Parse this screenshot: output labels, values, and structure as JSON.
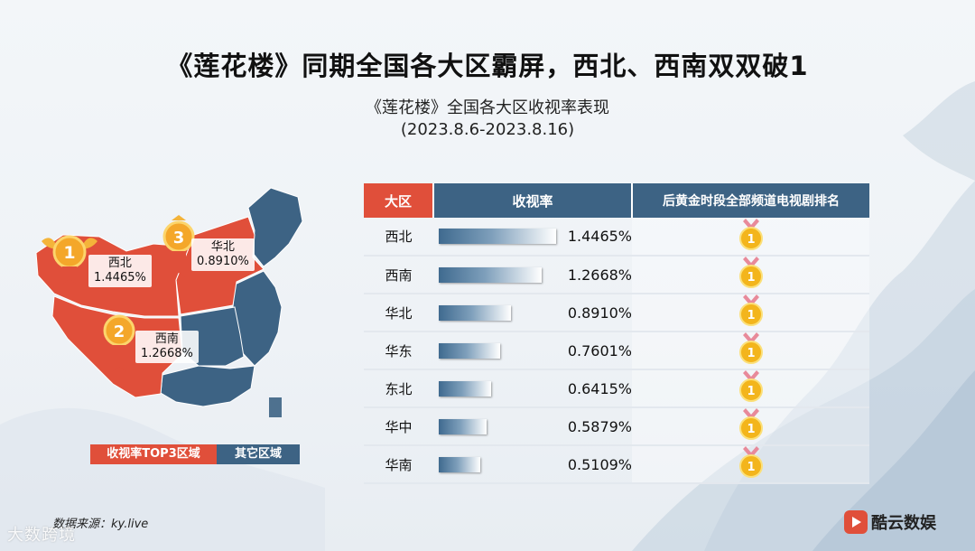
{
  "title": "《莲花楼》同期全国各大区霸屏，西北、西南双双破1",
  "subtitle_line1": "《莲花楼》全国各大区收视率表现",
  "subtitle_line2": "(2023.8.6-2023.8.16)",
  "colors": {
    "top3": "#e04f3a",
    "other": "#3d6384"
  },
  "map": {
    "labels": [
      {
        "rank": "1",
        "region": "西北",
        "value": "1.4465%"
      },
      {
        "rank": "2",
        "region": "西南",
        "value": "1.2668%"
      },
      {
        "rank": "3",
        "region": "华北",
        "value": "0.8910%"
      }
    ],
    "legend_top3": "收视率TOP3区域",
    "legend_other": "其它区域"
  },
  "table": {
    "headers": {
      "region": "大区",
      "rating": "收视率",
      "rank": "后黄金时段全部频道电视剧排名"
    },
    "rank_icon": "gold-medal-icon"
  },
  "chart_data": {
    "type": "bar",
    "categories": [
      "西北",
      "西南",
      "华北",
      "华东",
      "东北",
      "华中",
      "华南"
    ],
    "values": [
      1.4465,
      1.2668,
      0.891,
      0.7601,
      0.6415,
      0.5879,
      0.5109
    ],
    "value_labels": [
      "1.4465%",
      "1.2668%",
      "0.8910%",
      "0.7601%",
      "0.6415%",
      "0.5879%",
      "0.5109%"
    ],
    "ranks": [
      "1",
      "1",
      "1",
      "1",
      "1",
      "1",
      "1"
    ],
    "title": "《莲花楼》全国各大区收视率表现",
    "xlabel": "",
    "ylabel": "收视率"
  },
  "footer": {
    "source": "数据来源：ky.live",
    "watermark": "大数跨境",
    "brand": "酷云数娱"
  }
}
